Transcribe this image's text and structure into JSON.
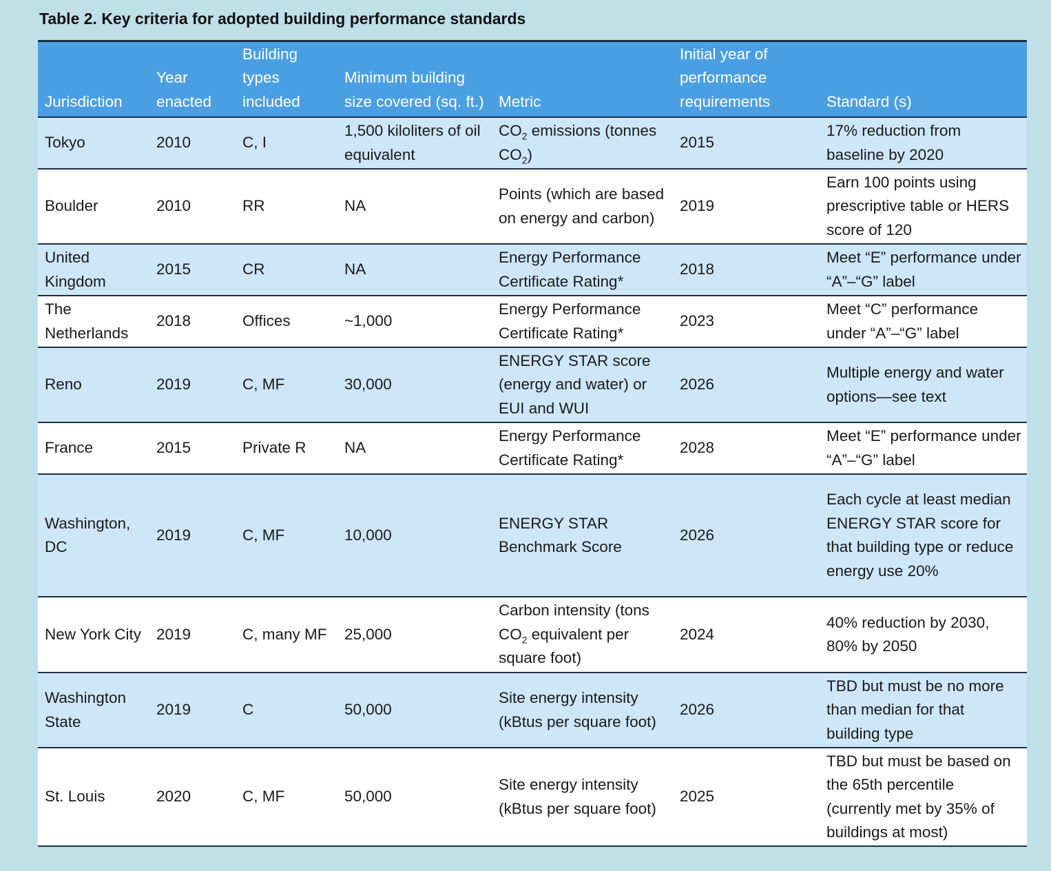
{
  "title": "Table 2. Key criteria for adopted building performance standards",
  "table": {
    "header": [
      "Jurisdiction",
      "Year enacted",
      "Building types included",
      "Minimum building size covered (sq. ft.)",
      "Metric",
      "Initial year of performance requirements",
      "Standard (s)"
    ],
    "rows": [
      [
        "Tokyo",
        "2010",
        "C, I",
        "1,500 kiloliters of oil equivalent",
        [
          "CO",
          "2",
          " emissions (tonnes CO",
          "2",
          ")"
        ],
        "2015",
        "17% reduction from baseline by 2020"
      ],
      [
        "Boulder",
        "2010",
        "RR",
        "NA",
        "Points (which are based on energy and carbon)",
        "2019",
        "Earn 100 points using prescriptive table or HERS score of 120"
      ],
      [
        "United Kingdom",
        "2015",
        "CR",
        "NA",
        "Energy Performance Certificate Rating*",
        "2018",
        "Meet “E” performance under “A”–“G” label"
      ],
      [
        "The Netherlands",
        "2018",
        "Offices",
        "~1,000",
        "Energy Performance Certificate Rating*",
        "2023",
        "Meet “C” performance under “A”–“G” label"
      ],
      [
        "Reno",
        "2019",
        "C, MF",
        "30,000",
        "ENERGY STAR score (energy and water) or EUI and WUI",
        "2026",
        "Multiple energy and water options—see text"
      ],
      [
        "France",
        "2015",
        "Private R",
        "NA",
        "Energy Performance Certificate Rating*",
        "2028",
        "Meet “E” performance under “A”–“G” label"
      ],
      [
        "Washington, DC",
        "2019",
        "C, MF",
        "10,000",
        "ENERGY STAR Benchmark Score",
        "2026",
        "Each cycle at least median ENERGY STAR score for that building type or reduce energy use 20%"
      ],
      [
        "New York City",
        "2019",
        "C, many MF",
        "25,000",
        [
          "Carbon intensity (tons CO",
          "2",
          " equivalent per square foot)"
        ],
        "2024",
        "40% reduction by 2030, 80% by 2050"
      ],
      [
        "Washington State",
        "2019",
        "C",
        "50,000",
        "Site energy intensity (kBtus per square foot)",
        "2026",
        "TBD but must be no more than median for that building type"
      ],
      [
        "St. Louis",
        "2020",
        "C, MF",
        "50,000",
        "Site energy intensity (kBtus per square foot)",
        "2025",
        "TBD but must be based on the 65th percentile (currently met by 35% of buildings at most)"
      ]
    ]
  }
}
